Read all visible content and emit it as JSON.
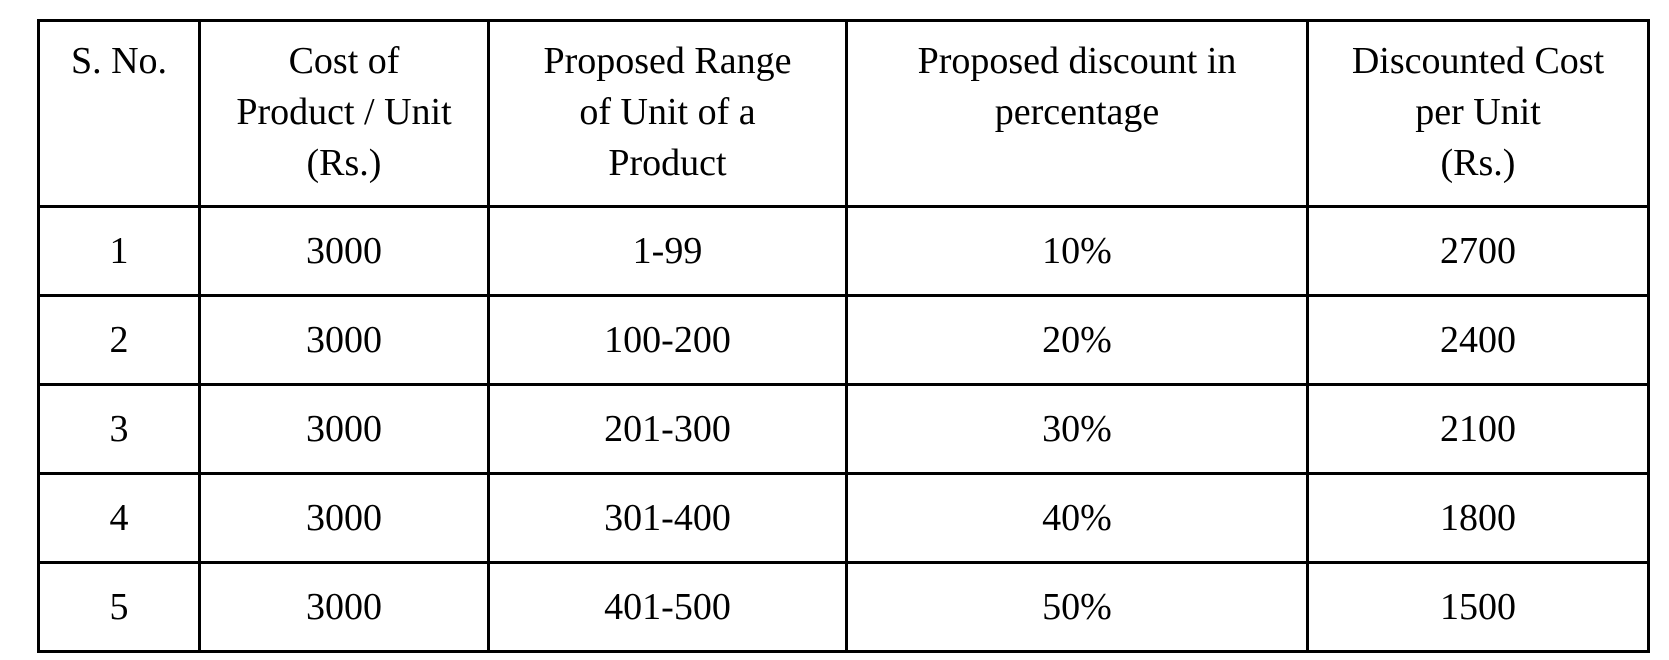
{
  "table": {
    "headers": [
      [
        "S. No."
      ],
      [
        "Cost of",
        "Product / Unit",
        "(Rs.)"
      ],
      [
        "Proposed Range",
        "of Unit of a",
        "Product"
      ],
      [
        "Proposed discount in",
        "percentage"
      ],
      [
        "Discounted Cost",
        "per Unit",
        "(Rs.)"
      ]
    ],
    "rows": [
      [
        "1",
        "3000",
        "1-99",
        "10%",
        "2700"
      ],
      [
        "2",
        "3000",
        "100-200",
        "20%",
        "2400"
      ],
      [
        "3",
        "3000",
        "201-300",
        "30%",
        "2100"
      ],
      [
        "4",
        "3000",
        "301-400",
        "40%",
        "1800"
      ],
      [
        "5",
        "3000",
        "401-500",
        "50%",
        "1500"
      ]
    ]
  }
}
